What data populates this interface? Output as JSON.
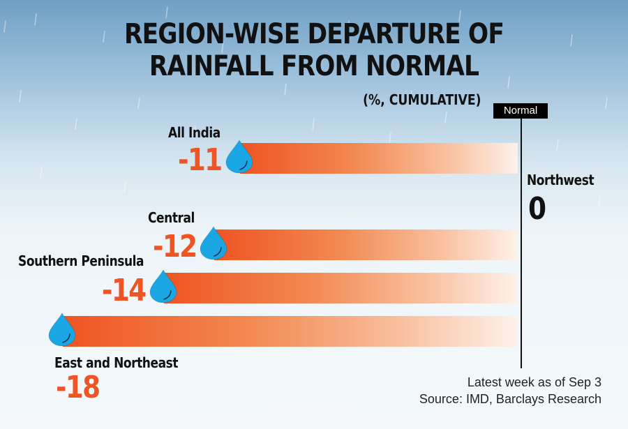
{
  "chart_data": {
    "type": "bar",
    "title": "REGION-WISE DEPARTURE OF RAINFALL FROM NORMAL",
    "subtitle": "(%, CUMULATIVE)",
    "reference_label": "Normal",
    "orientation": "horizontal",
    "categories": [
      "All India",
      "Central",
      "Southern Peninsula",
      "East and Northeast",
      "Northwest"
    ],
    "values": [
      -11,
      -12,
      -14,
      -18,
      0
    ],
    "value_labels": [
      "-11",
      "-12",
      "-14",
      "-18",
      "0"
    ],
    "xlim": [
      -18,
      0
    ],
    "grid": false,
    "legend": "none",
    "notes": [
      "Latest week as of Sep 3",
      "Source: IMD, Barclays Research"
    ]
  },
  "colors": {
    "bar_start": "#ef5423",
    "bar_end": "#fdf1ea",
    "value_text": "#ee5424",
    "drop": "#1aa7e4"
  }
}
